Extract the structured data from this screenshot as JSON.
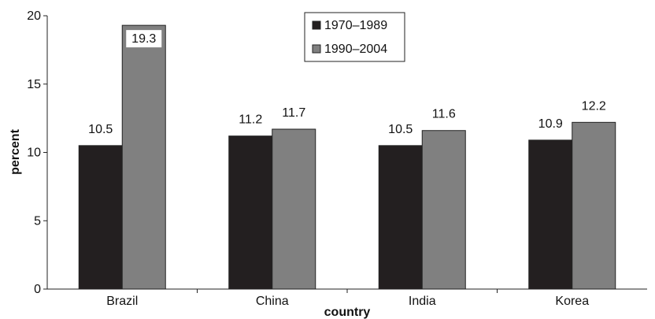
{
  "chart_data": {
    "type": "bar",
    "categories": [
      "Brazil",
      "China",
      "India",
      "Korea"
    ],
    "series": [
      {
        "name": "1970–1989",
        "values": [
          10.5,
          11.2,
          10.5,
          10.9
        ],
        "color": "#231f20"
      },
      {
        "name": "1990–2004",
        "values": [
          19.3,
          11.7,
          11.6,
          12.2
        ],
        "color": "#808080"
      }
    ],
    "xlabel": "country",
    "ylabel": "percent",
    "ylim": [
      0,
      20
    ],
    "yticks": [
      0,
      5,
      10,
      15,
      20
    ],
    "grid": false,
    "legend_position": "top-center",
    "label_highlight": {
      "series_index": 1,
      "category_index": 0,
      "background": "#ffffff"
    }
  }
}
